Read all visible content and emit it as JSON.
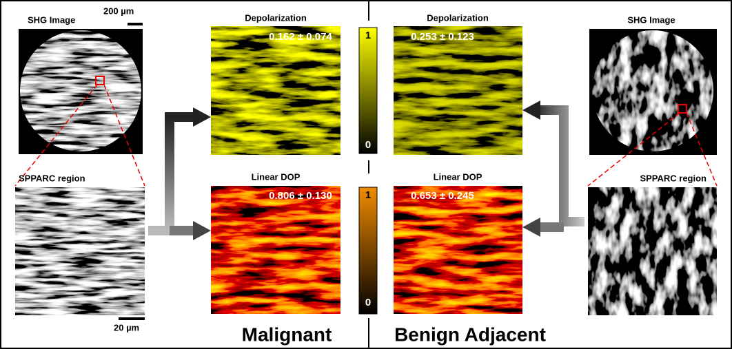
{
  "left": {
    "shg_title": "SHG Image",
    "shg_scale": "200 µm",
    "region_title": "SPPARC region",
    "region_scale": "20 µm"
  },
  "malignant": {
    "depolarization": {
      "title": "Depolarization",
      "value": "0.162 ± 0.074"
    },
    "linear_dop": {
      "title": "Linear DOP",
      "value": "0.806 ± 0.130"
    },
    "label": "Malignant"
  },
  "colorbars": [
    {
      "max": 1,
      "min": 0
    },
    {
      "max": 1,
      "min": 0
    }
  ],
  "benign": {
    "depolarization": {
      "title": "Depolarization",
      "value": "0.253 ± 0.123"
    },
    "linear_dop": {
      "title": "Linear DOP",
      "value": "0.653 ± 0.245"
    },
    "label": "Benign Adjacent"
  },
  "right": {
    "shg_title": "SHG Image",
    "region_title": "SPPARC region"
  }
}
